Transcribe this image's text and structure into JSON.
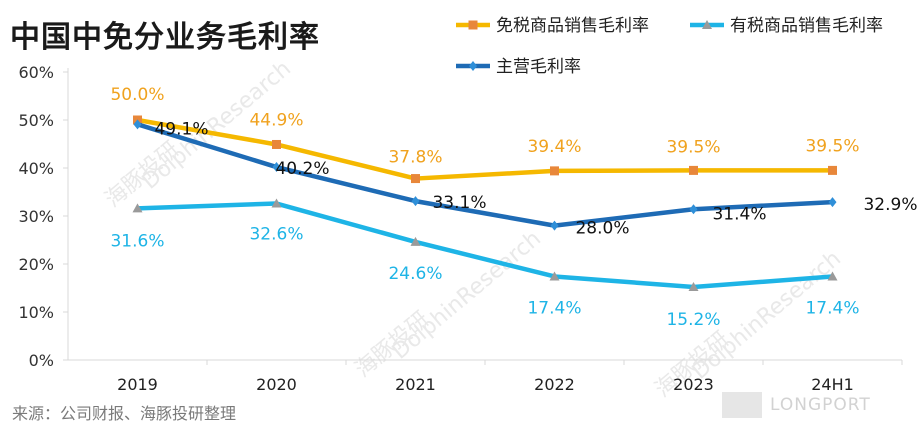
{
  "title": "中国中免分业务毛利率",
  "source": "来源：公司财报、海豚投研整理",
  "brand": "LONGPORT",
  "watermark": "DolphinResearch",
  "watermark_cn": "海豚投研",
  "chart_data": {
    "type": "line",
    "categories": [
      "2019",
      "2020",
      "2021",
      "2022",
      "2023",
      "24H1"
    ],
    "ylim": [
      0,
      60
    ],
    "yticks": [
      "0%",
      "10%",
      "20%",
      "30%",
      "40%",
      "50%",
      "60%"
    ],
    "legend_position": "top-right",
    "series": [
      {
        "name": "免税商品销售毛利率",
        "values": [
          50.0,
          44.9,
          37.8,
          39.4,
          39.5,
          39.5
        ],
        "labels": [
          "50.0%",
          "44.9%",
          "37.8%",
          "39.4%",
          "39.5%",
          "39.5%"
        ],
        "color": "#F5B800",
        "label_color": "#F0A21E",
        "marker": "square",
        "marker_color": "#E8873A"
      },
      {
        "name": "有税商品销售毛利率",
        "values": [
          31.6,
          32.6,
          24.6,
          17.4,
          15.2,
          17.4
        ],
        "labels": [
          "31.6%",
          "32.6%",
          "24.6%",
          "17.4%",
          "15.2%",
          "17.4%"
        ],
        "color": "#1EB4E6",
        "label_color": "#1EB4E6",
        "marker": "triangle",
        "marker_color": "#9a9a9a"
      },
      {
        "name": "主营毛利率",
        "values": [
          49.1,
          40.2,
          33.1,
          28.0,
          31.4,
          32.9
        ],
        "labels": [
          "49.1%",
          "40.2%",
          "33.1%",
          "28.0%",
          "31.4%",
          "32.9%"
        ],
        "color": "#1E6BB5",
        "label_color": "#111111",
        "marker": "diamond",
        "marker_color": "#2F8FD8"
      }
    ]
  }
}
